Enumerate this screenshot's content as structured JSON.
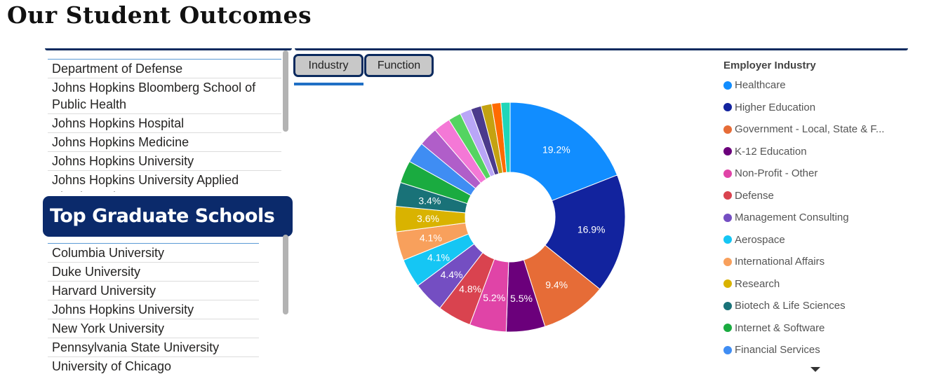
{
  "page": {
    "title": "Our Student Outcomes"
  },
  "employers": {
    "items": [
      "Department of Defense",
      "Johns Hopkins Bloomberg School of Public Health",
      "Johns Hopkins Hospital",
      "Johns Hopkins Medicine",
      "Johns Hopkins University",
      "Johns Hopkins University Applied Physics Laboratory"
    ]
  },
  "graduate_schools": {
    "header": "Top Graduate Schools",
    "items": [
      "Columbia University",
      "Duke University",
      "Harvard University",
      "Johns Hopkins University",
      "New York University",
      "Pennsylvania State University",
      "University of Chicago"
    ]
  },
  "tabs": {
    "industry": "Industry",
    "function": "Function",
    "active": "industry"
  },
  "legend": {
    "title": "Employer Industry",
    "items": [
      {
        "label": "Healthcare",
        "color": "#118DFF"
      },
      {
        "label": "Higher Education",
        "color": "#12239E"
      },
      {
        "label": "Government - Local, State & F...",
        "color": "#E66C37"
      },
      {
        "label": "K-12 Education",
        "color": "#6B007B"
      },
      {
        "label": "Non-Profit - Other",
        "color": "#E044A7"
      },
      {
        "label": "Defense",
        "color": "#D9434F"
      },
      {
        "label": "Management Consulting",
        "color": "#744EC2"
      },
      {
        "label": "Aerospace",
        "color": "#15C6F4"
      },
      {
        "label": "International Affairs",
        "color": "#F8A05C"
      },
      {
        "label": "Research",
        "color": "#D9B300"
      },
      {
        "label": "Biotech & Life Sciences",
        "color": "#197278"
      },
      {
        "label": "Internet & Software",
        "color": "#1AAB40"
      },
      {
        "label": "Financial Services",
        "color": "#3F8DF3"
      }
    ]
  },
  "chart_data": {
    "type": "pie",
    "style": "donut",
    "start_angle_deg": 0,
    "direction": "clockwise",
    "slices": [
      {
        "value": 19.2,
        "label": "19.2%",
        "color": "#118DFF"
      },
      {
        "value": 16.9,
        "label": "16.9%",
        "color": "#12239E"
      },
      {
        "value": 9.4,
        "label": "9.4%",
        "color": "#E66C37"
      },
      {
        "value": 5.5,
        "label": "5.5%",
        "color": "#6B007B"
      },
      {
        "value": 5.2,
        "label": "5.2%",
        "color": "#E044A7"
      },
      {
        "value": 4.8,
        "label": "4.8%",
        "color": "#D9434F"
      },
      {
        "value": 4.4,
        "label": "4.4%",
        "color": "#744EC2"
      },
      {
        "value": 4.1,
        "label": "4.1%",
        "color": "#15C6F4"
      },
      {
        "value": 4.1,
        "label": "4.1%",
        "color": "#F8A05C"
      },
      {
        "value": 3.6,
        "label": "3.6%",
        "color": "#D9B300"
      },
      {
        "value": 3.4,
        "label": "3.4%",
        "color": "#197278"
      },
      {
        "value": 3.2,
        "label": "",
        "color": "#1AAB40"
      },
      {
        "value": 3.0,
        "label": "",
        "color": "#3F8DF3"
      },
      {
        "value": 2.7,
        "label": "",
        "color": "#B05EC9"
      },
      {
        "value": 2.4,
        "label": "",
        "color": "#F478D6"
      },
      {
        "value": 1.8,
        "label": "",
        "color": "#54D461"
      },
      {
        "value": 1.6,
        "label": "",
        "color": "#B9A6F7"
      },
      {
        "value": 1.5,
        "label": "",
        "color": "#4B3A8C"
      },
      {
        "value": 1.5,
        "label": "",
        "color": "#C4A211"
      },
      {
        "value": 1.3,
        "label": "",
        "color": "#FF6B00"
      },
      {
        "value": 1.3,
        "label": "",
        "color": "#20D6B8"
      }
    ]
  }
}
